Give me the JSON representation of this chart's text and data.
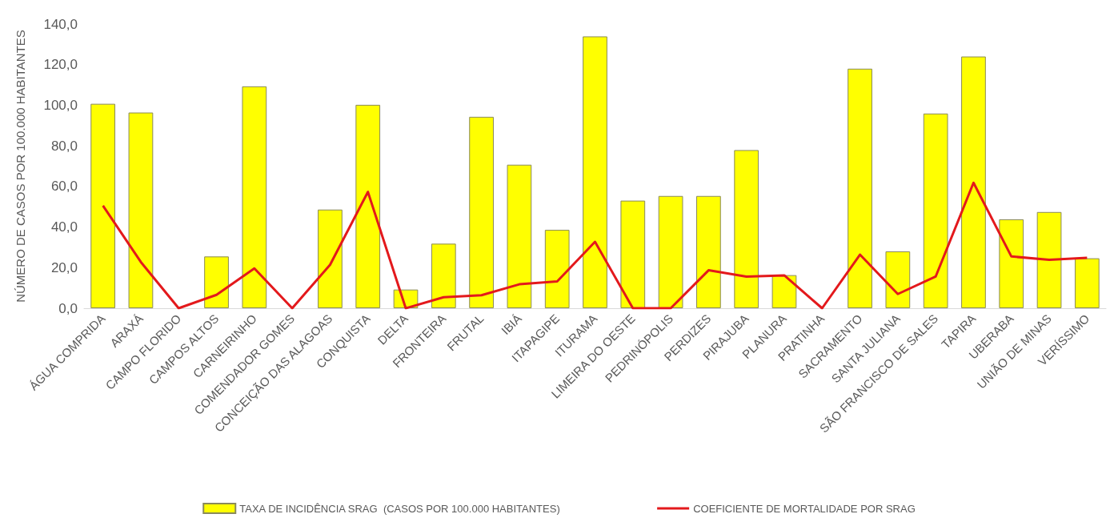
{
  "chart_data": {
    "type": "bar",
    "ylabel": "NÚMERO DE CASOS POR 100.000 HABITANTES",
    "categories": [
      "ÁGUA COMPRIDA",
      "ARAXÁ",
      "CAMPO FLORIDO",
      "CAMPOS ALTOS",
      "CARNEIRINHO",
      "COMENDADOR GOMES",
      "CONCEIÇÃO DAS ALAGOAS",
      "CONQUISTA",
      "DELTA",
      "FRONTEIRA",
      "FRUTAL",
      "IBIÁ",
      "ITAPAGIPE",
      "ITURAMA",
      "LIMEIRA DO OESTE",
      "PEDRINÓPOLIS",
      "PERDIZES",
      "PIRAJUBA",
      "PLANURA",
      "PRATINHA",
      "SACRAMENTO",
      "SANTA JULIANA",
      "SÃO FRANCISCO DE SALES",
      "TAPIRA",
      "UBERABA",
      "UNIÃO DE MINAS",
      "VERÍSSIMO"
    ],
    "series": [
      {
        "name": "TAXA DE INCIDÊNCIA SRAG  (CASOS POR 100.000 HABITANTES)",
        "color": "#ffff00",
        "values": [
          100.7,
          96.4,
          0,
          25.5,
          109.3,
          0,
          48.6,
          100.2,
          9.2,
          31.8,
          94.3,
          70.7,
          38.6,
          133.9,
          53,
          55.3,
          55.3,
          77.9,
          16.3,
          0,
          118,
          28,
          95.9,
          124,
          43.8,
          47.4,
          24.6
        ]
      },
      {
        "name": "COEFICIENTE DE MORTALIDADE POR SRAG",
        "type": "line",
        "color": "#e3191c",
        "marker": "none",
        "values": [
          50.5,
          22.8,
          0,
          6.6,
          19.6,
          0,
          21.4,
          57.3,
          0,
          5.4,
          6.4,
          11.8,
          13.2,
          32.7,
          0,
          0,
          18.7,
          15.6,
          16.2,
          0,
          26.4,
          7,
          15.6,
          61.8,
          25.5,
          23.9,
          24.8
        ]
      }
    ],
    "ylim": [
      0,
      140
    ],
    "yticks": [
      {
        "value": 0,
        "label": "0,0"
      },
      {
        "value": 20,
        "label": "20,0"
      },
      {
        "value": 40,
        "label": "40,0"
      },
      {
        "value": 60,
        "label": "60,0"
      },
      {
        "value": 80,
        "label": "80,0"
      },
      {
        "value": 100,
        "label": "100,0"
      },
      {
        "value": 120,
        "label": "120,0"
      },
      {
        "value": 140,
        "label": "140,0"
      }
    ],
    "grid": false,
    "legend": "bottom"
  }
}
